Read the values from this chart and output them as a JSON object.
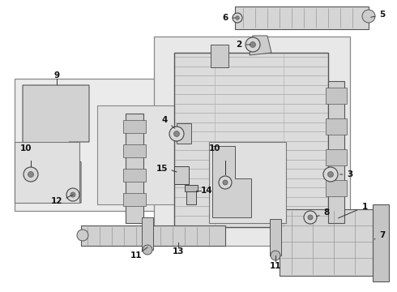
{
  "fig_width": 4.9,
  "fig_height": 3.6,
  "dpi": 100,
  "bg_color": "#ffffff",
  "lc": "#444444",
  "fill_light": "#e8e8e8",
  "fill_mid": "#d8d8d8",
  "fill_dark": "#c8c8c8"
}
